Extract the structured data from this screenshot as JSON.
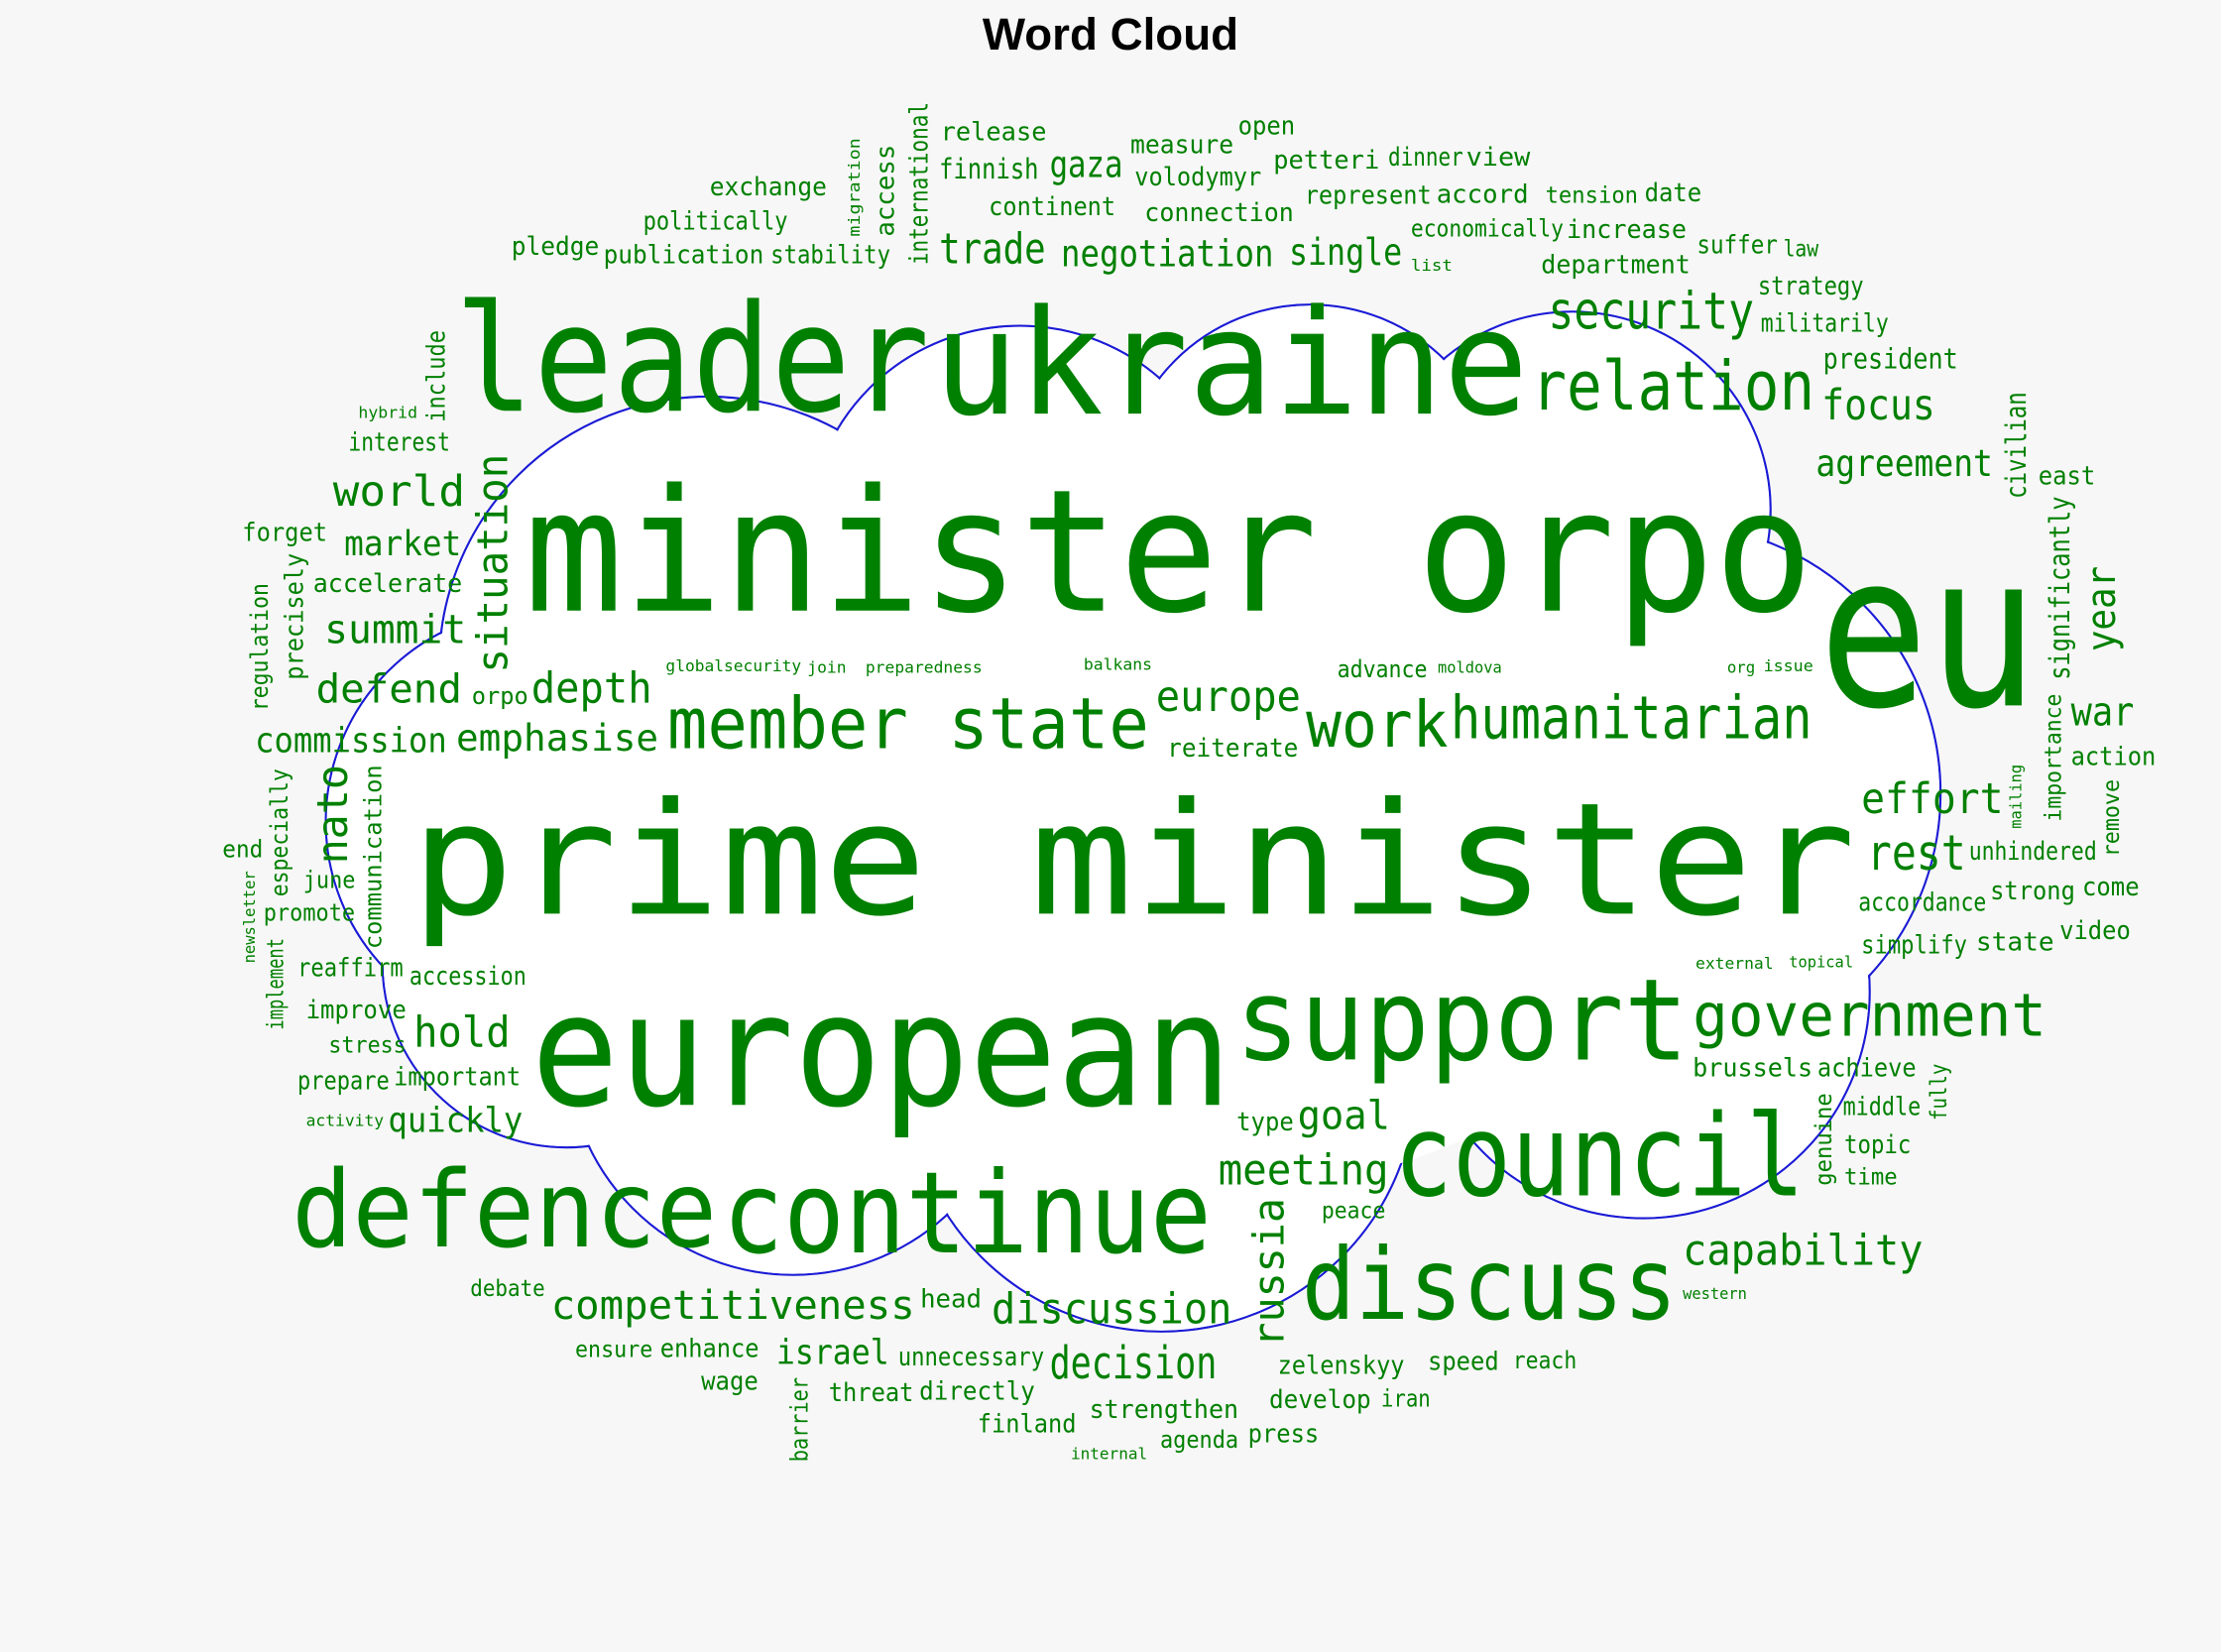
{
  "title": "Word Cloud",
  "colors": {
    "words": "#008000",
    "outline": "#1a1ad6",
    "background": "#f7f7f7",
    "cloud_fill": "#ffffff"
  },
  "words": [
    "prime minister",
    "minister orpo",
    "ukraine",
    "eu",
    "leader",
    "european",
    "support",
    "council",
    "defence",
    "continue",
    "discuss",
    "member state",
    "relation",
    "security",
    "humanitarian",
    "work",
    "government",
    "capability",
    "situation",
    "russia",
    "nato",
    "trade",
    "finnish",
    "negotiation",
    "connection",
    "petteri",
    "accord",
    "tension",
    "increase",
    "date",
    "law",
    "list",
    "department",
    "militarily",
    "agreement",
    "strategy",
    "significantly",
    "year",
    "civilian",
    "president",
    "rest",
    "focus",
    "war",
    "east",
    "action",
    "effort",
    "accordance",
    "unhindered",
    "remove",
    "importance",
    "strong",
    "brussels",
    "moldova",
    "come",
    "state",
    "issue",
    "topical",
    "org",
    "video",
    "simplify",
    "fully",
    "time",
    "topic",
    "achieve",
    "external",
    "mailing",
    "middle",
    "genuine",
    "western",
    "goal",
    "reach",
    "zelenskyy",
    "type",
    "peace",
    "head",
    "develop",
    "press",
    "iran",
    "agenda",
    "finland",
    "discussion",
    "decision",
    "strengthen",
    "internal",
    "unnecessary",
    "israel",
    "ensure",
    "debate",
    "quickly",
    "enhance",
    "competitiveness",
    "wage",
    "activity",
    "prepare",
    "important",
    "hold",
    "june",
    "newsletter",
    "barrier",
    "directly",
    "emphasise",
    "accession",
    "threat",
    "improve",
    "stress",
    "reaffirm",
    "reiterate",
    "speed",
    "continent",
    "meeting",
    "gaza",
    "balkans",
    "dinner",
    "volodymyr",
    "view",
    "europe",
    "economically",
    "single",
    "advance",
    "represent",
    "suffer",
    "measure",
    "open",
    "international",
    "access",
    "release",
    "accelerate",
    "interest",
    "migration",
    "join",
    "stability",
    "pledge",
    "politically",
    "exchange",
    "publication",
    "world",
    "market",
    "hybrid",
    "include",
    "precisely",
    "forget",
    "summit",
    "depth",
    "defend",
    "commission",
    "regulation",
    "communication",
    "especially",
    "globalsecurity",
    "preparedness",
    "implement",
    "promote",
    "orpo",
    "end"
  ]
}
